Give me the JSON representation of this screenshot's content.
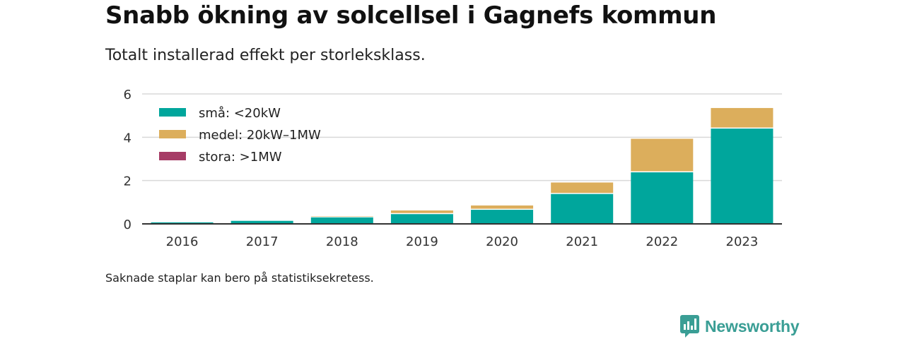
{
  "header": {
    "title": "Snabb ökning av solcellsel i Gagnefs kommun",
    "subtitle": "Totalt installerad effekt per storleksklass."
  },
  "footer": {
    "note": "Saknade staplar kan bero på statistiksekretess.",
    "brand": "Newsworthy"
  },
  "chart_data": {
    "type": "bar",
    "stacked": true,
    "categories": [
      "2016",
      "2017",
      "2018",
      "2019",
      "2020",
      "2021",
      "2022",
      "2023"
    ],
    "series": [
      {
        "name": "små: <20kW",
        "color": "#00a69c",
        "values": [
          0.07,
          0.14,
          0.3,
          0.45,
          0.65,
          1.38,
          2.38,
          4.4
        ]
      },
      {
        "name": "medel: 20kW–1MW",
        "color": "#dcae5c",
        "values": [
          0.0,
          0.0,
          0.05,
          0.17,
          0.2,
          0.53,
          1.55,
          0.95
        ]
      },
      {
        "name": "stora: >1MW",
        "color": "#a63c66",
        "values": [
          0,
          0,
          0,
          0,
          0,
          0,
          0,
          0
        ]
      }
    ],
    "y_ticks": [
      "0",
      "2",
      "4",
      "6"
    ],
    "ylim": [
      0,
      6
    ],
    "grid": true,
    "legend_position": "top-left"
  }
}
